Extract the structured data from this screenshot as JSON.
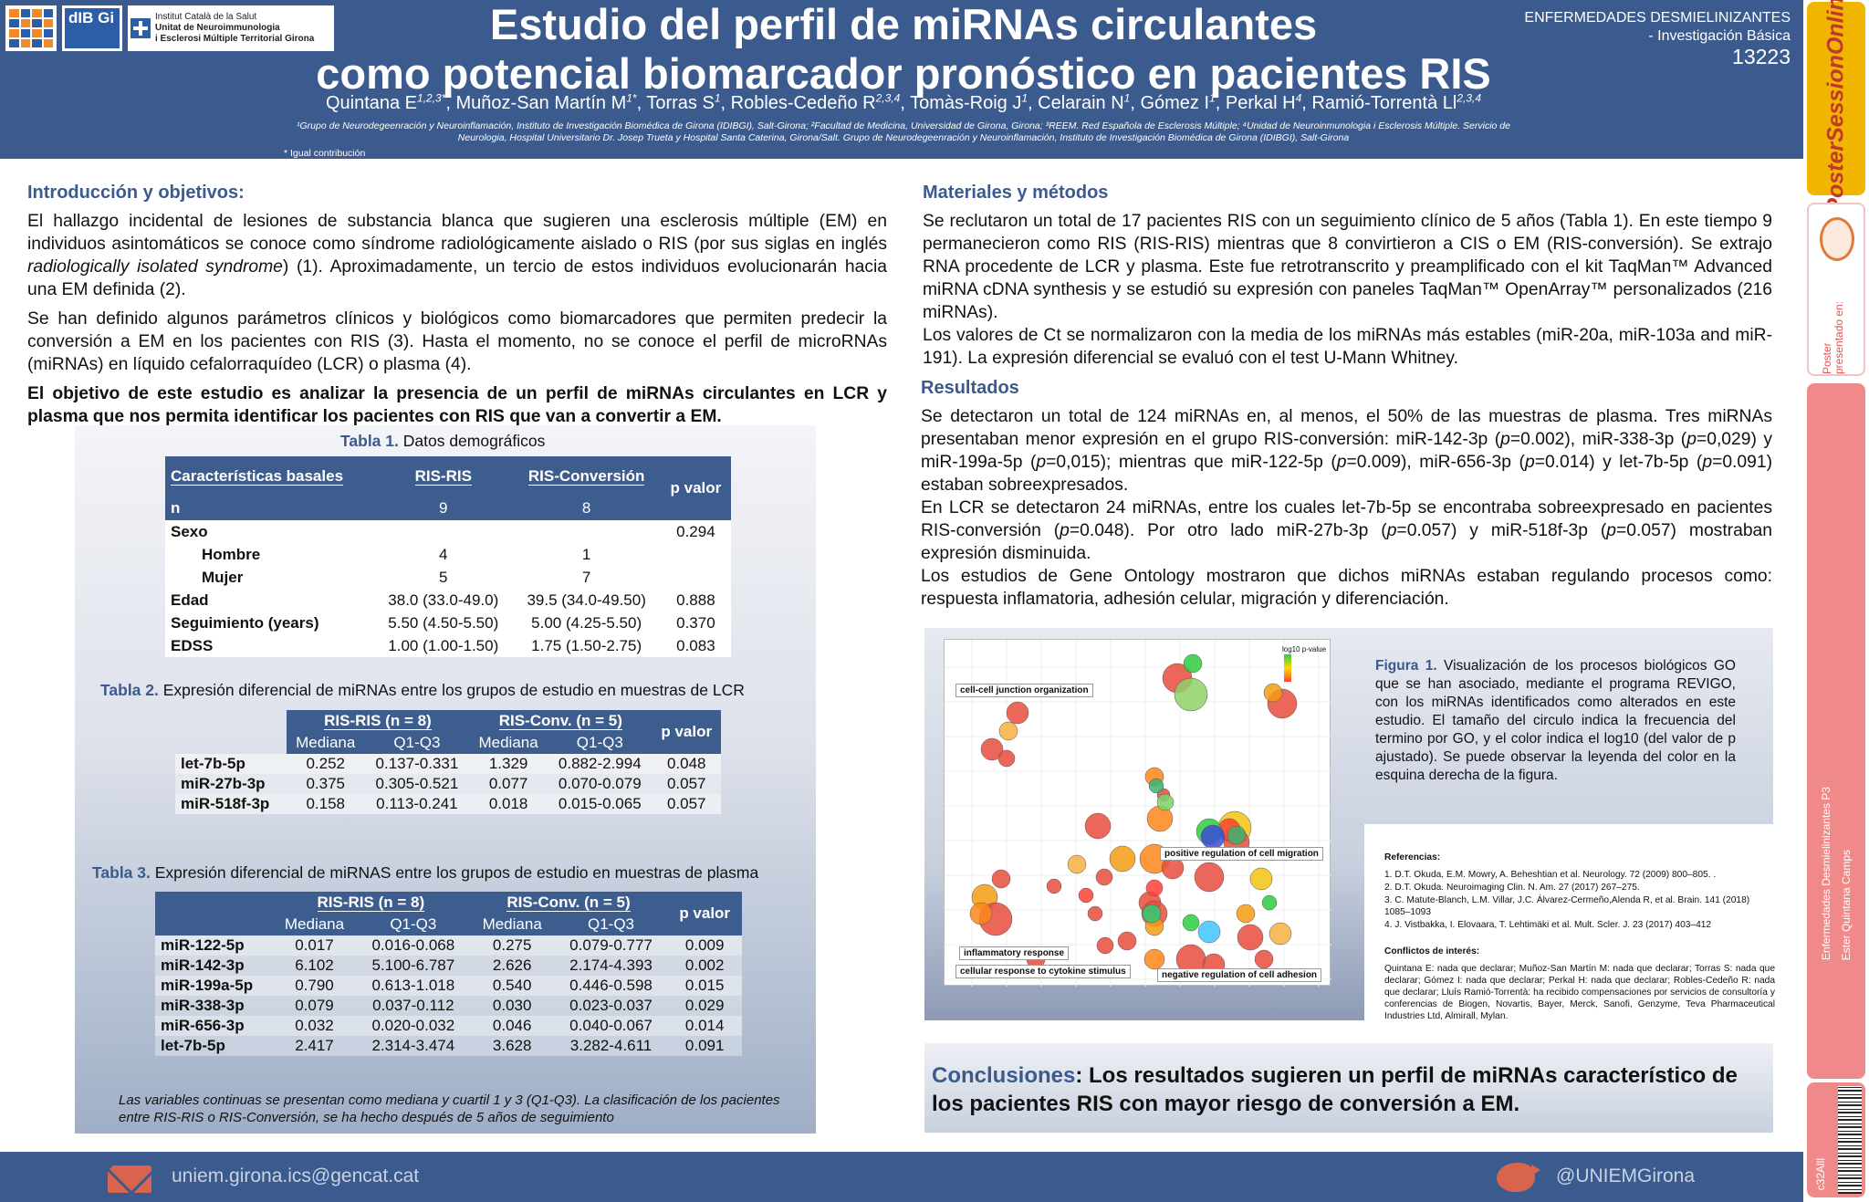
{
  "header": {
    "logos": {
      "dibgi": "dIB Gi",
      "ics_line1": "Institut Català de la Salut",
      "ics_line2": "Unitat de Neuroimmunologia",
      "ics_line3": "i Esclerosi Múltiple Territorial Girona"
    },
    "title_line1": "Estudio del perfil de miRNAs circulantes",
    "title_line2": "como potencial biomarcador pronóstico en pacientes RIS",
    "authors": [
      {
        "name": "Quintana E",
        "sup": "1,2,3*"
      },
      {
        "name": "Muñoz-San Martín M",
        "sup": "1*"
      },
      {
        "name": "Torras S",
        "sup": "1"
      },
      {
        "name": "Robles-Cedeño R",
        "sup": "2,3,4"
      },
      {
        "name": "Tomàs-Roig J",
        "sup": "1"
      },
      {
        "name": "Celarain N",
        "sup": "1"
      },
      {
        "name": "Gómez I",
        "sup": "1"
      },
      {
        "name": "Perkal H",
        "sup": "4"
      },
      {
        "name": "Ramió-Torrentà Ll",
        "sup": "2,3,4"
      }
    ],
    "affiliations": "¹Grupo de Neurodegeenración y Neuroinflamación, Instituto de Investigación Biomédica de Girona (IDIBGI), Salt-Girona; ²Facultad de Medicina, Universidad de Girona, Girona; ³REEM. Red Española de Esclerosis Múltiple; ⁴Unidad de Neuroinmunologia i Esclerosis Múltiple. Servicio de Neurologia, Hospital Universitario Dr. Josep Trueta y Hospital Santa Caterina, Girona/Salt. Grupo de Neurodegeenración y Neuroinflamación, Instituto de Investigación Biomédica de Girona (IDIBGI), Salt-Girona",
    "equal_note": "* Igual contribución",
    "topic_line1": "ENFERMEDADES DESMIELINIZANTES",
    "topic_line2": "- Investigación Básica",
    "abstract_id": "13223"
  },
  "sidebar": {
    "logo_text": "PosterSessionOnline",
    "presented_text": "Poster presentado en:",
    "vertical_1": "Enfermedades Desmielinizantes P3",
    "vertical_2": "Ester Quintana Camps",
    "code": "c32Alll"
  },
  "intro": {
    "heading": "Introducción y objetivos:",
    "p1_a": "El hallazgo incidental de lesiones de substancia blanca que sugieren una esclerosis múltiple (EM) en individuos asintomáticos se conoce como síndrome radiológicamente aislado o RIS (por sus siglas en inglés ",
    "p1_italic": "radiologically isolated syndrome",
    "p1_b": ") (1). Aproximadamente, un tercio de estos individuos evolucionarán hacia una EM definida (2).",
    "p2": "Se han definido algunos parámetros clínicos y biológicos como biomarcadores que permiten predecir la conversión a EM en los pacientes con RIS (3). Hasta el momento, no se conoce el perfil de microRNAs (miRNAs) en líquido cefalorraquídeo (LCR) o plasma (4).",
    "objective": "El objetivo de este estudio es analizar la presencia de un perfil de miRNAs circulantes en LCR y plasma que nos permita identificar los pacientes con RIS que van a convertir a EM."
  },
  "methods": {
    "heading": "Materiales y métodos",
    "p1": "Se reclutaron un total de 17 pacientes RIS con un seguimiento clínico de 5 años (Tabla 1). En este tiempo 9 permanecieron como RIS (RIS-RIS) mientras que 8 convirtieron a CIS o EM (RIS-conversión). Se extrajo RNA procedente de LCR y plasma. Este fue retrotranscrito y preamplificado con el kit TaqMan™ Advanced miRNA cDNA synthesis y se estudió su expresión con paneles TaqMan™ OpenArray™ personalizados (216 miRNAs).",
    "p2": "Los valores de Ct se normalizaron con la media de los miRNAs más estables (miR-20a, miR-103a and miR-191). La expresión diferencial se evaluó con el test U-Mann Whitney."
  },
  "results": {
    "heading": "Resultados",
    "p1": "Se detectaron un total de 124 miRNAs en, al menos, el 50% de las muestras de plasma. Tres miRNAs presentaban menor expresión en el grupo RIS-conversión: miR-142-3p (p=0.002), miR-338-3p (p=0,029) y miR-199a-5p (p=0,015); mientras que miR-122-5p (p=0.009), miR-656-3p (p=0.014) y let-7b-5p (p=0.091) estaban sobreexpresados.",
    "p2": "En LCR se detectaron 24 miRNAs, entre los cuales let-7b-5p se encontraba sobreexpresado en pacientes RIS-conversión (p=0.048). Por otro lado miR-27b-3p (p=0.057) y miR-518f-3p (p=0.057) mostraban expresión disminuida.",
    "p3": "Los estudios de Gene Ontology mostraron que dichos miRNAs estaban regulando procesos como: respuesta inflamatoria, adhesión celular, migración y diferenciación."
  },
  "table1": {
    "caption_label": "Tabla 1.",
    "caption_text": " Datos demográficos",
    "headers": [
      "Características basales",
      "RIS-RIS",
      "RIS-Conversión",
      "p valor"
    ],
    "n_row": [
      "n",
      "9",
      "8",
      ""
    ],
    "rows": [
      {
        "name": "Sexo",
        "indent": false,
        "a": "",
        "b": "",
        "p": "0.294"
      },
      {
        "name": "Hombre",
        "indent": true,
        "a": "4",
        "b": "1",
        "p": ""
      },
      {
        "name": "Mujer",
        "indent": true,
        "a": "5",
        "b": "7",
        "p": ""
      },
      {
        "name": "Edad",
        "indent": false,
        "a": "38.0 (33.0-49.0)",
        "b": "39.5 (34.0-49.50)",
        "p": "0.888"
      },
      {
        "name": "Seguimiento (years)",
        "indent": false,
        "a": "5.50 (4.50-5.50)",
        "b": "5.00 (4.25-5.50)",
        "p": "0.370"
      },
      {
        "name": "EDSS",
        "indent": false,
        "a": "1.00 (1.00-1.50)",
        "b": "1.75 (1.50-2.75)",
        "p": "0.083"
      }
    ]
  },
  "table2": {
    "caption_label": "Tabla 2.",
    "caption_text": " Expresión diferencial de miRNAs entre los grupos de estudio en muestras de LCR",
    "group_a": "RIS-RIS (n = 8)",
    "group_b": "RIS-Conv. (n = 5)",
    "sub": [
      "Mediana",
      "Q1-Q3",
      "Mediana",
      "Q1-Q3"
    ],
    "p_header": "p valor",
    "rows": [
      [
        "let-7b-5p",
        "0.252",
        "0.137-0.331",
        "1.329",
        "0.882-2.994",
        "0.048"
      ],
      [
        "miR-27b-3p",
        "0.375",
        "0.305-0.521",
        "0.077",
        "0.070-0.079",
        "0.057"
      ],
      [
        "miR-518f-3p",
        "0.158",
        "0.113-0.241",
        "0.018",
        "0.015-0.065",
        "0.057"
      ]
    ]
  },
  "table3": {
    "caption_label": "Tabla 3.",
    "caption_text": " Expresión diferencial de miRNAS entre los grupos de estudio en muestras de plasma",
    "group_a": "RIS-RIS (n = 8)",
    "group_b": "RIS-Conv. (n = 5)",
    "sub": [
      "Mediana",
      "Q1-Q3",
      "Mediana",
      "Q1-Q3"
    ],
    "p_header": "p valor",
    "rows": [
      [
        "miR-122-5p",
        "0.017",
        "0.016-0.068",
        "0.275",
        "0.079-0.777",
        "0.009"
      ],
      [
        "miR-142-3p",
        "6.102",
        "5.100-6.787",
        "2.626",
        "2.174-4.393",
        "0.002"
      ],
      [
        "miR-199a-5p",
        "0.790",
        "0.613-1.018",
        "0.540",
        "0.446-0.598",
        "0.015"
      ],
      [
        "miR-338-3p",
        "0.079",
        "0.037-0.112",
        "0.030",
        "0.023-0.037",
        "0.029"
      ],
      [
        "miR-656-3p",
        "0.032",
        "0.020-0.032",
        "0.046",
        "0.040-0.067",
        "0.014"
      ],
      [
        "let-7b-5p",
        "2.417",
        "2.314-3.474",
        "3.628",
        "3.282-4.611",
        "0.091"
      ]
    ],
    "footnote": "Las variables continuas se presentan como mediana y cuartil 1 y 3 (Q1-Q3). La clasificación de los pacientes entre RIS-RIS o RIS-Conversión, se ha hecho después de 5 años de seguimiento"
  },
  "figure": {
    "caption_label": "Figura 1.",
    "caption_text": "  Visualización de los procesos biológicos GO que se han asociado, mediante el programa REVIGO, con los miRNAs identificados como alterados en este estudio. El tamaño del circulo indica la frecuencia del termino por GO, y el color indica el log10 (del valor de p ajustado). Se puede observar la leyenda del color en la esquina derecha de la figura.",
    "legend_title": "log10 p-value",
    "labels": {
      "cell_junction": "cell-cell junction organization",
      "migration": "positive regulation of cell migration",
      "inflammatory": "inflammatory response",
      "cytokine": "cellular response to cytokine stimulus",
      "adhesion": "negative regulation of cell adhesion"
    }
  },
  "references": {
    "heading": "Referencias:",
    "items": [
      "1. D.T. Okuda, E.M. Mowry, A. Beheshtian et al. Neurology. 72 (2009) 800–805. .",
      "2. D.T. Okuda. Neuroimaging Clin. N. Am. 27 (2017) 267–275.",
      "3. C. Matute-Blanch, L.M. Villar, J.C. Álvarez-Cermeño,Alenda R, et al. Brain. 141 (2018) 1085–1093",
      "4. J. Vistbakka, I. Elovaara, T. Lehtimäki et al. Mult. Scler. J. 23 (2017) 403–412"
    ],
    "conflicts_heading": "Conflictos de interés:",
    "conflicts_text": "Quintana E: nada que declarar; Muñoz-San Martín M: nada que declarar; Torras S: nada que declarar; Gómez I: nada que declarar; Perkal H: nada que declarar; Robles-Cedeño R: nada que declarar; Lluís Ramió-Torrentà: ha recibido compensaciones por servicios de consultoría y conferencias de Biogen, Novartis, Bayer, Merck, Sanofi, Genzyme, Teva Pharmaceutical Industries Ltd, Almirall, Mylan."
  },
  "conclusion": {
    "label": "Conclusiones",
    "text": ": Los resultados sugieren un perfil de miRNAs característico de los pacientes RIS con mayor riesgo de conversión a EM."
  },
  "footer": {
    "email": "uniem.girona.ics@gencat.cat",
    "twitter": "@UNIEMGirona"
  },
  "colors": {
    "brand": "#3b5a8e",
    "accent": "#d9644d"
  }
}
